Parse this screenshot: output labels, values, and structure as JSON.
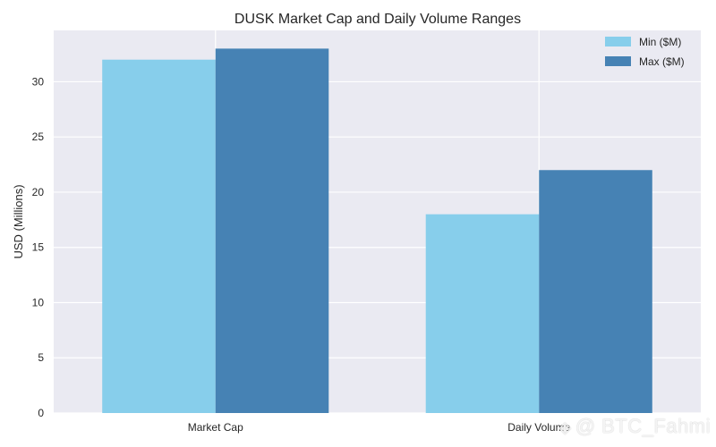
{
  "chart_data": {
    "type": "bar",
    "title": "DUSK Market Cap and Daily Volume Ranges",
    "xlabel": "",
    "ylabel": "USD (Millions)",
    "categories": [
      "Market Cap",
      "Daily Volume"
    ],
    "series": [
      {
        "name": "Min ($M)",
        "values": [
          32,
          18
        ],
        "color": "#87CEEB"
      },
      {
        "name": "Max ($M)",
        "values": [
          33,
          22
        ],
        "color": "#4682B4"
      }
    ],
    "ylim": [
      0,
      34.65
    ],
    "yticks": [
      0,
      5,
      10,
      15,
      20,
      25,
      30
    ],
    "grid": true,
    "legend_position": "top-right",
    "background": "#EAEAF2"
  },
  "watermark": {
    "text": "@ BTC_Fahmi",
    "icon": "diamond-logo-icon"
  }
}
